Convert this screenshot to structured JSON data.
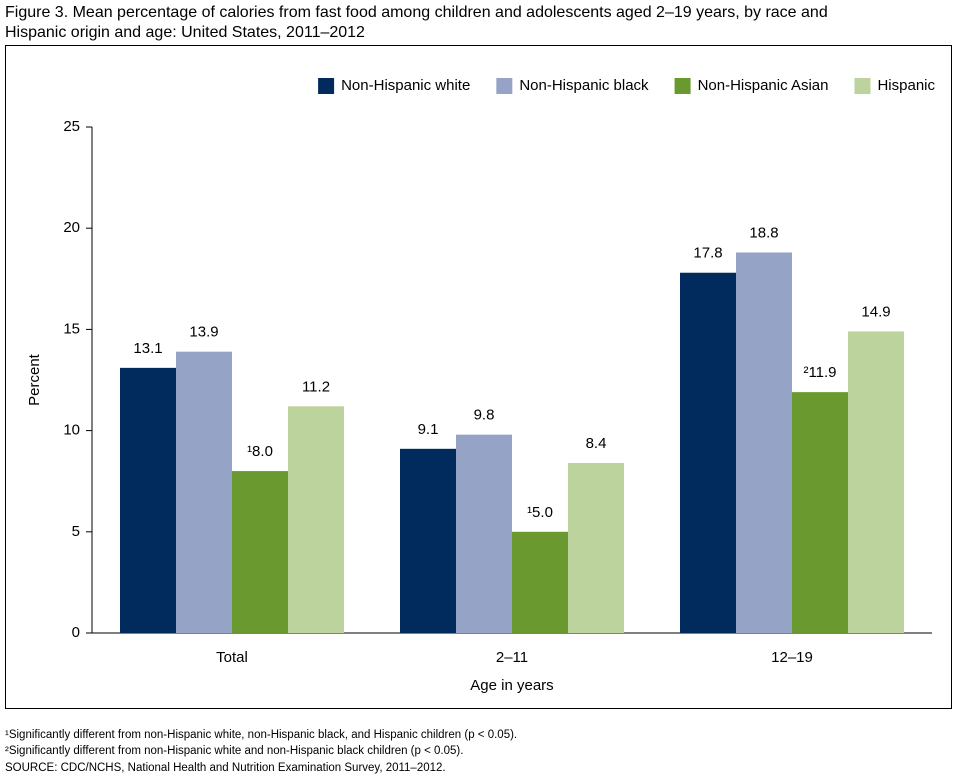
{
  "chart_data": {
    "type": "bar",
    "title": "Figure 3. Mean percentage of calories from fast food among children and adolescents aged 2–19 years, by race and",
    "subtitle": "Hispanic origin and age: United States, 2011–2012",
    "x_label": "Age in years",
    "y_label": "Percent",
    "categories": [
      "Total",
      "2–11",
      "12–19"
    ],
    "series": [
      {
        "name": "Non-Hispanic white",
        "color": "#002b5c",
        "values": [
          13.1,
          9.1,
          17.8
        ],
        "value_labels": [
          "13.1",
          "9.1",
          "17.8"
        ]
      },
      {
        "name": "Non-Hispanic black",
        "color": "#95a4c6",
        "values": [
          13.9,
          9.8,
          18.8
        ],
        "value_labels": [
          "13.9",
          "9.8",
          "18.8"
        ]
      },
      {
        "name": "Non-Hispanic Asian",
        "color": "#6a9a2f",
        "values": [
          8,
          5,
          11.9
        ],
        "value_labels": [
          "¹8.0",
          "¹5.0",
          "²11.9"
        ]
      },
      {
        "name": "Hispanic",
        "color": "#bdd39e",
        "values": [
          11.2,
          8.4,
          14.9
        ],
        "value_labels": [
          "11.2",
          "8.4",
          "14.9"
        ]
      }
    ],
    "ylim": [
      0,
      25
    ],
    "yticks": [
      0,
      5,
      10,
      15,
      20,
      25
    ],
    "grid": false,
    "legend_position": "top-right",
    "notes": [
      "¹Significantly different from non-Hispanic white, non-Hispanic black, and Hispanic children (p < 0.05).",
      "²Significantly different from non-Hispanic white and non-Hispanic black children (p < 0.05).",
      "SOURCE: CDC/NCHS, National Health and Nutrition Examination Survey, 2011–2012."
    ]
  }
}
